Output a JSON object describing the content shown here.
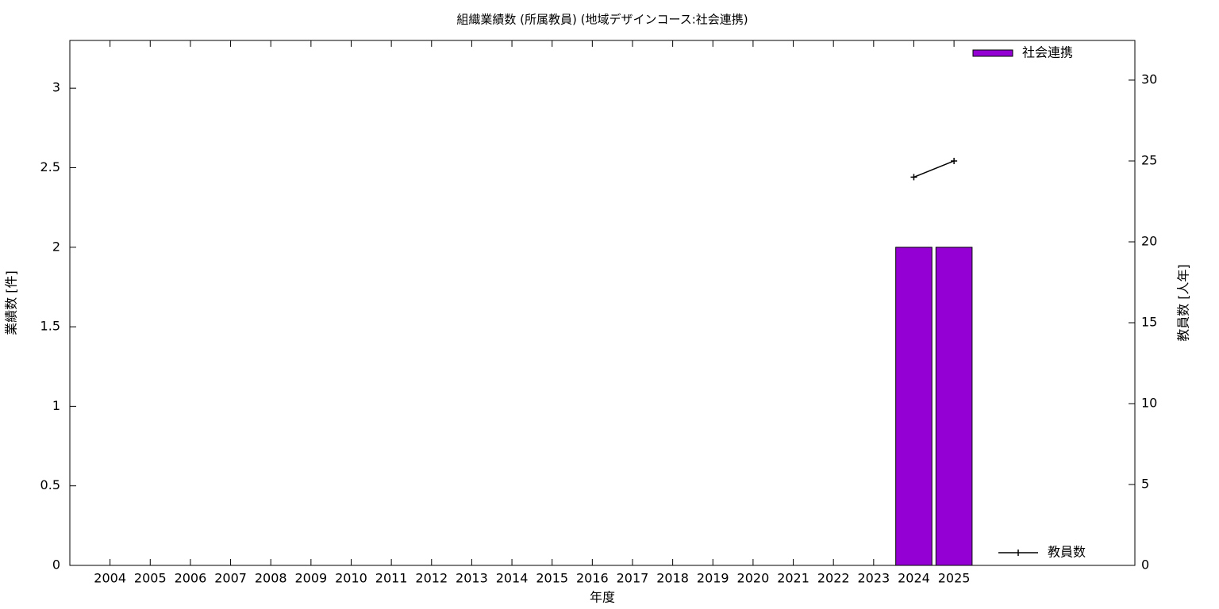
{
  "chart_data": {
    "type": "bar",
    "title": "組織業績数 (所属教員) (地域デザインコース:社会連携)",
    "x_label": "年度",
    "y_label": "業績数 [件]",
    "y2_label": "教員数 [人年]",
    "categories": [
      "2004",
      "2005",
      "2006",
      "2007",
      "2008",
      "2009",
      "2010",
      "2011",
      "2012",
      "2013",
      "2014",
      "2015",
      "2016",
      "2017",
      "2018",
      "2019",
      "2020",
      "2021",
      "2022",
      "2023",
      "2024",
      "2025"
    ],
    "series": [
      {
        "name": "社会連携",
        "color": "#9400d3",
        "type": "bar",
        "values": [
          null,
          null,
          null,
          null,
          null,
          null,
          null,
          null,
          null,
          null,
          null,
          null,
          null,
          null,
          null,
          null,
          null,
          null,
          null,
          null,
          2,
          2
        ]
      },
      {
        "name": "教員数",
        "color": "#000000",
        "type": "line",
        "axis": "y2",
        "values": [
          null,
          null,
          null,
          null,
          null,
          null,
          null,
          null,
          null,
          null,
          null,
          null,
          null,
          null,
          null,
          null,
          null,
          null,
          null,
          null,
          24,
          25
        ]
      }
    ],
    "ylim": [
      0,
      3.3
    ],
    "yticks": [
      0,
      0.5,
      1,
      1.5,
      2,
      2.5,
      3
    ],
    "y2lim": [
      0,
      32.45
    ],
    "y2ticks": [
      0,
      5,
      10,
      15,
      20,
      25,
      30
    ],
    "legend": "top-right"
  }
}
